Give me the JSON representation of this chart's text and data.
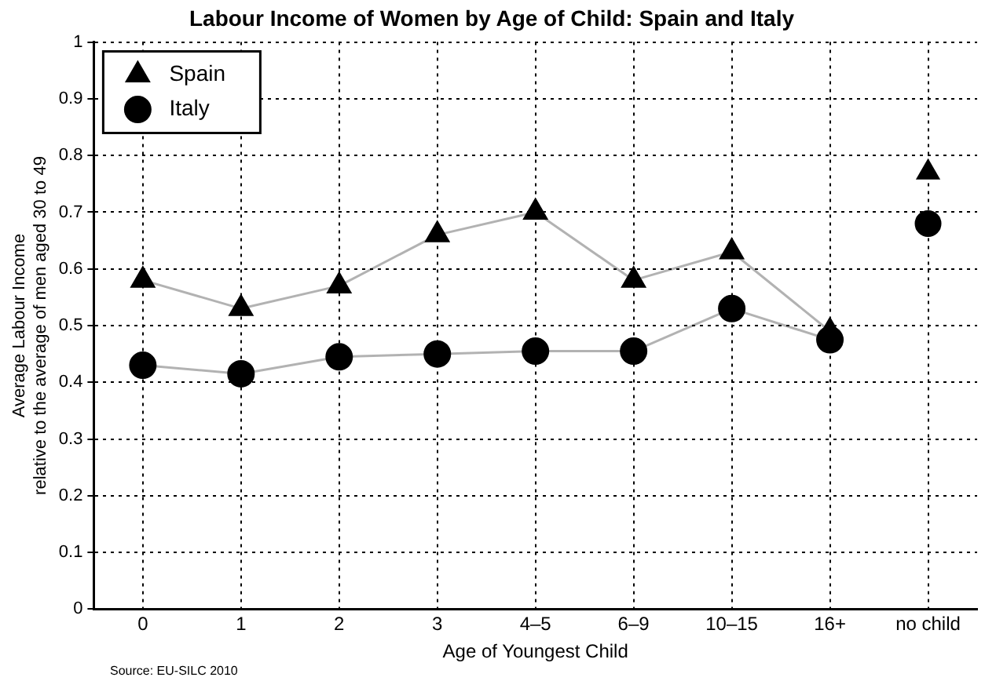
{
  "chart_data": {
    "type": "line",
    "title": "Labour Income of Women by Age of Child: Spain and Italy",
    "xlabel": "Age of Youngest Child",
    "ylabel": "Average Labour Income\nrelative to the average of men aged 30 to 49",
    "categories": [
      "0",
      "1",
      "2",
      "3",
      "4–5",
      "6–9",
      "10–15",
      "16+",
      "no child"
    ],
    "series": [
      {
        "name": "Spain",
        "color": "#000000",
        "marker": "triangle",
        "values": [
          0.58,
          0.53,
          0.57,
          0.66,
          0.7,
          0.58,
          0.63,
          0.49,
          null
        ]
      },
      {
        "name": "Italy",
        "color": "#000000",
        "marker": "circle",
        "values": [
          0.43,
          0.415,
          0.445,
          0.45,
          0.455,
          0.455,
          0.53,
          0.475,
          null
        ]
      },
      {
        "type": "scatter",
        "color": "#000000",
        "marker": "triangle",
        "x": [
          "no child"
        ],
        "values": [
          0.77
        ]
      },
      {
        "type": "scatter",
        "color": "#000000",
        "marker": "circle",
        "x": [
          "no child"
        ],
        "values": [
          0.68
        ]
      }
    ],
    "ylim": [
      0,
      1
    ],
    "yticks": [
      0,
      0.1,
      0.2,
      0.3,
      0.4,
      0.5,
      0.6,
      0.7,
      0.8,
      0.9,
      1
    ],
    "grid": true,
    "legend": "top left",
    "line_style": "solid",
    "annotations": [
      "Source: EU-SILC 2010"
    ]
  }
}
